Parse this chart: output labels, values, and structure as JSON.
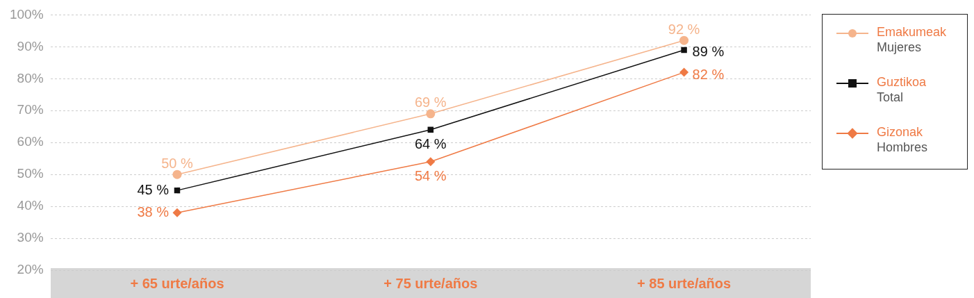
{
  "chart_data": {
    "type": "line",
    "categories": [
      "+ 65 urte/años",
      "+ 75 urte/años",
      "+ 85 urte/años"
    ],
    "series": [
      {
        "name": "Emakumeak\nMujeres",
        "color": "#f5b48c",
        "values": [
          50,
          69,
          92
        ],
        "value_labels": [
          "50 %",
          "69 %",
          "92 %"
        ],
        "marker": "circle"
      },
      {
        "name": "Guztikoa\nTotal",
        "color": "#111111",
        "values": [
          45,
          64,
          89
        ],
        "value_labels": [
          "45 %",
          "64 %",
          "89 %"
        ],
        "marker": "square"
      },
      {
        "name": "Gizonak\nHombres",
        "color": "#ef7a45",
        "values": [
          38,
          54,
          82
        ],
        "value_labels": [
          "38 %",
          "54 %",
          "82 %"
        ],
        "marker": "diamond"
      }
    ],
    "ylim": [
      20,
      100
    ],
    "yticks": [
      {
        "value": 20,
        "label": "20%"
      },
      {
        "value": 30,
        "label": "30%"
      },
      {
        "value": 40,
        "label": "40%"
      },
      {
        "value": 50,
        "label": "50%"
      },
      {
        "value": 60,
        "label": "60%"
      },
      {
        "value": 70,
        "label": "70%"
      },
      {
        "value": 80,
        "label": "80%"
      },
      {
        "value": 90,
        "label": "90%"
      },
      {
        "value": 100,
        "label": "100%"
      }
    ],
    "grid": "y",
    "legend": "right",
    "line_style": "solid"
  }
}
